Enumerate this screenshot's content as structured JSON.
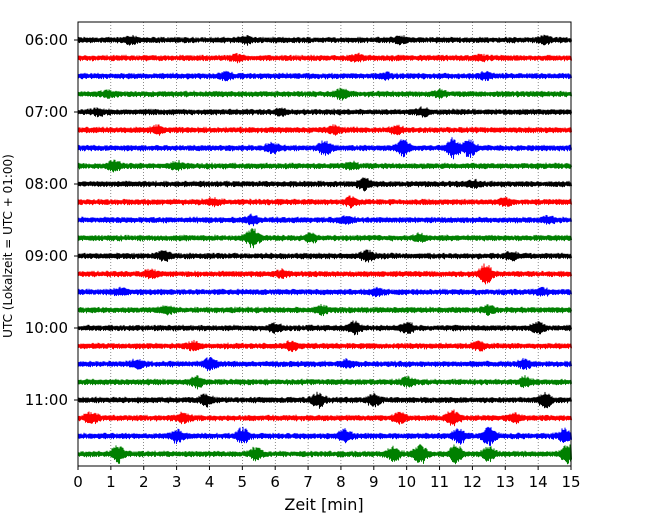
{
  "chart_data": {
    "type": "line",
    "subtype": "helicorder",
    "title": "",
    "xlabel": "Zeit  [min]",
    "ylabel": "UTC (Lokalzeit = UTC + 01:00)",
    "xlim": [
      0,
      15
    ],
    "x_ticks": [
      "0",
      "1",
      "2",
      "3",
      "4",
      "5",
      "6",
      "7",
      "8",
      "9",
      "10",
      "11",
      "12",
      "13",
      "14",
      "15"
    ],
    "y_tick_labels": [
      "06:00",
      "07:00",
      "08:00",
      "09:00",
      "10:00",
      "11:00"
    ],
    "row_interval_min": 15,
    "rows": [
      {
        "start": "06:00",
        "color": "#000000",
        "events": [
          [
            1.6,
            0.35
          ],
          [
            5.1,
            0.3
          ],
          [
            9.8,
            0.3
          ],
          [
            14.2,
            0.3
          ]
        ]
      },
      {
        "start": "06:15",
        "color": "#ff0000",
        "events": [
          [
            4.8,
            0.25
          ],
          [
            8.5,
            0.25
          ],
          [
            12.2,
            0.2
          ]
        ]
      },
      {
        "start": "06:30",
        "color": "#0000ff",
        "events": [
          [
            4.5,
            0.3
          ],
          [
            9.3,
            0.25
          ],
          [
            12.4,
            0.25
          ]
        ]
      },
      {
        "start": "06:45",
        "color": "#008000",
        "events": [
          [
            0.9,
            0.25
          ],
          [
            8.0,
            0.45
          ],
          [
            11.0,
            0.3
          ]
        ]
      },
      {
        "start": "07:00",
        "color": "#000000",
        "events": [
          [
            0.6,
            0.3
          ],
          [
            6.2,
            0.3
          ],
          [
            10.5,
            0.3
          ]
        ]
      },
      {
        "start": "07:15",
        "color": "#ff0000",
        "events": [
          [
            2.4,
            0.3
          ],
          [
            7.8,
            0.35
          ],
          [
            9.7,
            0.3
          ]
        ]
      },
      {
        "start": "07:30",
        "color": "#0000ff",
        "events": [
          [
            5.9,
            0.45
          ],
          [
            7.5,
            0.7
          ],
          [
            9.9,
            0.8
          ],
          [
            11.4,
            1.0
          ],
          [
            11.9,
            0.85
          ]
        ]
      },
      {
        "start": "07:45",
        "color": "#008000",
        "events": [
          [
            1.1,
            0.45
          ],
          [
            3.0,
            0.35
          ],
          [
            8.3,
            0.3
          ]
        ]
      },
      {
        "start": "08:00",
        "color": "#000000",
        "events": [
          [
            8.7,
            0.5
          ],
          [
            12.0,
            0.3
          ]
        ]
      },
      {
        "start": "08:15",
        "color": "#ff0000",
        "events": [
          [
            4.1,
            0.3
          ],
          [
            8.3,
            0.4
          ],
          [
            13.0,
            0.3
          ]
        ]
      },
      {
        "start": "08:30",
        "color": "#0000ff",
        "events": [
          [
            5.3,
            0.4
          ],
          [
            8.2,
            0.3
          ],
          [
            14.3,
            0.25
          ]
        ]
      },
      {
        "start": "08:45",
        "color": "#008000",
        "events": [
          [
            5.3,
            0.9
          ],
          [
            7.1,
            0.4
          ],
          [
            10.4,
            0.3
          ]
        ]
      },
      {
        "start": "09:00",
        "color": "#000000",
        "events": [
          [
            2.6,
            0.4
          ],
          [
            8.8,
            0.5
          ],
          [
            13.2,
            0.3
          ]
        ]
      },
      {
        "start": "09:15",
        "color": "#ff0000",
        "events": [
          [
            2.2,
            0.35
          ],
          [
            6.2,
            0.3
          ],
          [
            12.4,
            1.0
          ]
        ]
      },
      {
        "start": "09:30",
        "color": "#0000ff",
        "events": [
          [
            1.3,
            0.3
          ],
          [
            9.1,
            0.35
          ],
          [
            14.1,
            0.3
          ]
        ]
      },
      {
        "start": "09:45",
        "color": "#008000",
        "events": [
          [
            2.7,
            0.3
          ],
          [
            7.4,
            0.35
          ],
          [
            12.5,
            0.3
          ]
        ]
      },
      {
        "start": "10:00",
        "color": "#000000",
        "events": [
          [
            6.0,
            0.35
          ],
          [
            8.4,
            0.55
          ],
          [
            10.0,
            0.5
          ],
          [
            14.0,
            0.5
          ]
        ]
      },
      {
        "start": "10:15",
        "color": "#ff0000",
        "events": [
          [
            3.5,
            0.35
          ],
          [
            6.5,
            0.45
          ],
          [
            12.2,
            0.35
          ]
        ]
      },
      {
        "start": "10:30",
        "color": "#0000ff",
        "events": [
          [
            1.8,
            0.35
          ],
          [
            4.0,
            0.5
          ],
          [
            8.2,
            0.4
          ],
          [
            13.6,
            0.35
          ]
        ]
      },
      {
        "start": "10:45",
        "color": "#008000",
        "events": [
          [
            3.6,
            0.45
          ],
          [
            10.0,
            0.4
          ],
          [
            13.6,
            0.4
          ]
        ]
      },
      {
        "start": "11:00",
        "color": "#000000",
        "events": [
          [
            3.9,
            0.55
          ],
          [
            7.3,
            0.7
          ],
          [
            9.0,
            0.6
          ],
          [
            14.2,
            0.7
          ]
        ]
      },
      {
        "start": "11:15",
        "color": "#ff0000",
        "events": [
          [
            0.4,
            0.5
          ],
          [
            3.2,
            0.4
          ],
          [
            9.8,
            0.5
          ],
          [
            11.4,
            0.7
          ],
          [
            13.3,
            0.4
          ]
        ]
      },
      {
        "start": "11:30",
        "color": "#0000ff",
        "events": [
          [
            3.0,
            0.55
          ],
          [
            5.0,
            0.7
          ],
          [
            8.1,
            0.6
          ],
          [
            11.6,
            0.7
          ],
          [
            12.5,
            0.85
          ],
          [
            14.8,
            0.6
          ]
        ]
      },
      {
        "start": "11:45",
        "color": "#008000",
        "events": [
          [
            1.2,
            0.8
          ],
          [
            5.4,
            0.55
          ],
          [
            9.6,
            0.7
          ],
          [
            10.4,
            1.0
          ],
          [
            11.5,
            0.9
          ],
          [
            12.5,
            0.6
          ],
          [
            14.9,
            0.9
          ]
        ]
      }
    ]
  }
}
